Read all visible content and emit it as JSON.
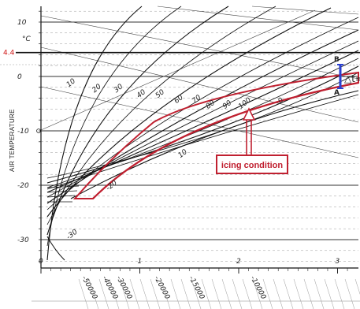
{
  "chart_data": {
    "type": "line",
    "title": "",
    "ylabel": "AIR TEMPERATURE",
    "yunit": "°C",
    "ylim": [
      -35,
      12
    ],
    "xlim": [
      0,
      3.2
    ],
    "y_ticks": [
      {
        "value": 10,
        "label": "10"
      },
      {
        "value": 0,
        "label": "0"
      },
      {
        "value": -10,
        "label": "-10"
      },
      {
        "value": -20,
        "label": "-20"
      },
      {
        "value": -30,
        "label": "-30"
      }
    ],
    "x_ticks": [
      {
        "value": 0,
        "label": "0"
      },
      {
        "value": 1,
        "label": "1"
      },
      {
        "value": 2,
        "label": "2"
      },
      {
        "value": 3,
        "label": "3"
      }
    ],
    "highlight_temperature": {
      "value": 4.4,
      "label": "4.4",
      "color": "#d01818"
    },
    "curve_labels": [
      {
        "label": "10",
        "x": 0.28,
        "y": -2
      },
      {
        "label": "20",
        "x": 0.54,
        "y": -3
      },
      {
        "label": "30",
        "x": 0.76,
        "y": -3
      },
      {
        "label": "40",
        "x": 0.99,
        "y": -4
      },
      {
        "label": "50",
        "x": 1.18,
        "y": -4
      },
      {
        "label": "60",
        "x": 1.37,
        "y": -5
      },
      {
        "label": "70",
        "x": 1.55,
        "y": -5
      },
      {
        "label": "80",
        "x": 1.69,
        "y": -6
      },
      {
        "label": "90",
        "x": 1.86,
        "y": -6
      },
      {
        "label": "100",
        "x": 2.02,
        "y": -6
      },
      {
        "label": "0",
        "x": 2.42,
        "y": -5
      },
      {
        "label": "10",
        "x": 1.41,
        "y": -15
      },
      {
        "label": "-20",
        "x": 0.68,
        "y": -21
      },
      {
        "label": "-30",
        "x": 0.28,
        "y": -30
      }
    ],
    "bottom_scale": [
      "-50000",
      "-40000",
      "-30000",
      "-20000",
      "-15000",
      "-10000"
    ],
    "annotations": [
      {
        "label": "icing condition",
        "color": "#c02030"
      },
      {
        "label": "B"
      },
      {
        "label": "A"
      },
      {
        "label": "△t="
      }
    ],
    "grid": true,
    "legend": "none"
  }
}
